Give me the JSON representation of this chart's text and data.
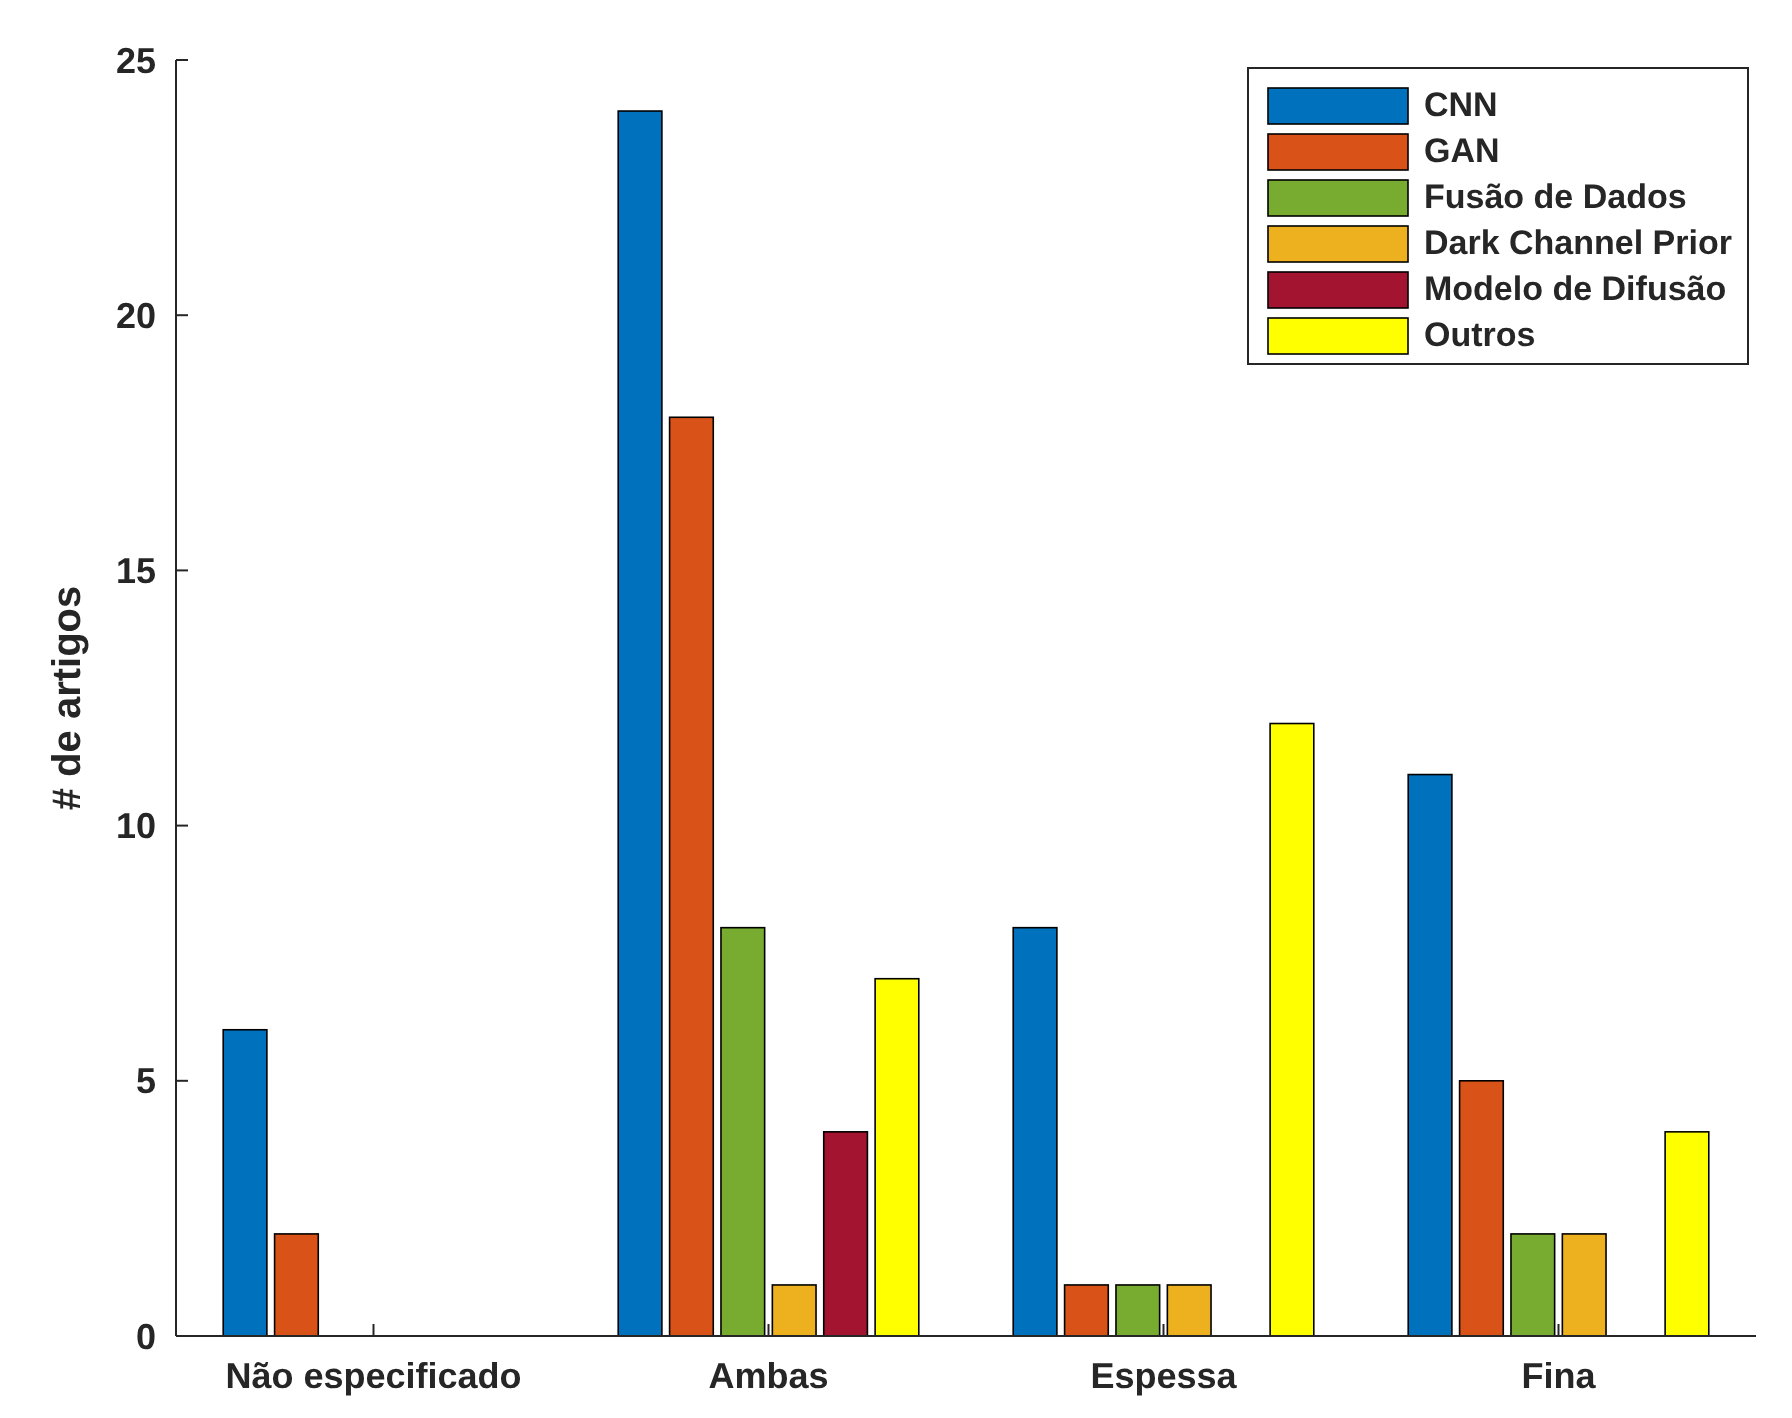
{
  "chart_data": {
    "type": "bar",
    "ylabel": "# de artigos",
    "categories": [
      "Não especificado",
      "Ambas",
      "Espessa",
      "Fina"
    ],
    "series": [
      {
        "name": "CNN",
        "color": "#0072bd",
        "values": [
          6,
          24,
          8,
          11
        ]
      },
      {
        "name": "GAN",
        "color": "#d95319",
        "values": [
          2,
          18,
          1,
          5
        ]
      },
      {
        "name": "Fusão de Dados",
        "color": "#77ac30",
        "values": [
          0,
          8,
          1,
          2
        ]
      },
      {
        "name": "Dark Channel Prior",
        "color": "#edb120",
        "values": [
          0,
          1,
          1,
          2
        ]
      },
      {
        "name": "Modelo de Difusão",
        "color": "#a2142f",
        "values": [
          0,
          4,
          0,
          0
        ]
      },
      {
        "name": "Outros",
        "color": "#ffff00",
        "values": [
          0,
          7,
          12,
          4
        ]
      }
    ],
    "ylim": [
      0,
      25
    ],
    "yticks": [
      0,
      5,
      10,
      15,
      20,
      25
    ],
    "grid": false,
    "legend": "top right"
  }
}
